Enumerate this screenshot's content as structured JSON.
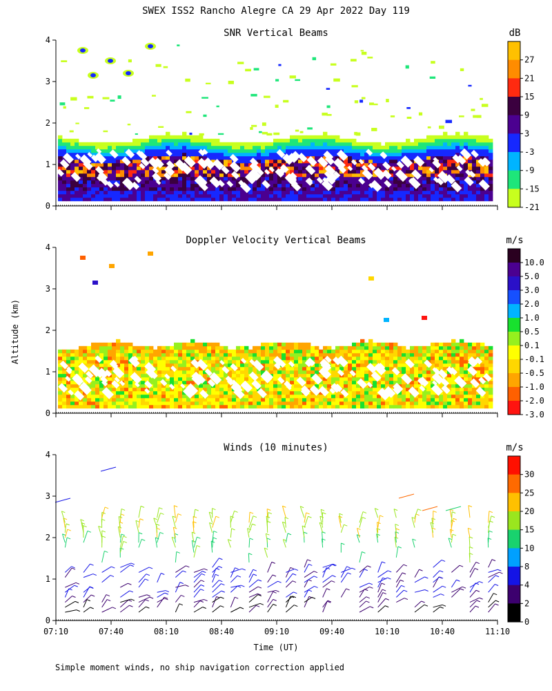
{
  "figure": {
    "title": "SWEX ISS2 Rancho Alegre CA  29 Apr 2022 Day 119",
    "ylabel": "Altitude (km)",
    "xlabel": "Time (UT)",
    "footnote": "Simple moment winds, no ship navigation correction applied"
  },
  "chart_data": [
    {
      "type": "heatmap",
      "title": "SNR Vertical Beams",
      "xlabel": "Time (UT)",
      "ylabel": "Altitude (km)",
      "xlim": [
        "07:10",
        "11:10"
      ],
      "ylim": [
        0,
        4
      ],
      "y_ticks": [
        "0",
        "1",
        "2",
        "3",
        "4"
      ],
      "colorbar": {
        "unit": "dB",
        "ticks": [
          "27",
          "21",
          "15",
          "9",
          "3",
          "-3",
          "-9",
          "-15",
          "-21"
        ],
        "colors": [
          "#ffc000",
          "#ff8c00",
          "#ff2a10",
          "#3b003f",
          "#4b0090",
          "#1628ff",
          "#00b4ff",
          "#1ee67a",
          "#c8ff1e"
        ]
      },
      "description_values": {
        "layer_top_km": 1.7,
        "strong_return_band_km": [
          0.2,
          1.5
        ],
        "scattered_returns_km": [
          1.8,
          4.0
        ]
      }
    },
    {
      "type": "heatmap",
      "title": "Doppler Velocity Vertical Beams",
      "xlabel": "Time (UT)",
      "ylabel": "Altitude (km)",
      "xlim": [
        "07:10",
        "11:10"
      ],
      "ylim": [
        0,
        4
      ],
      "y_ticks": [
        "0",
        "1",
        "2",
        "3",
        "4"
      ],
      "colorbar": {
        "unit": "m/s",
        "ticks": [
          "10.0",
          "5.0",
          "3.0",
          "2.0",
          "1.0",
          "0.5",
          "0.1",
          "-0.1",
          "-0.5",
          "-1.0",
          "-2.0",
          "-3.0"
        ],
        "colors": [
          "#2a0020",
          "#4b0090",
          "#2a10c8",
          "#1650ff",
          "#00b4ff",
          "#18e12e",
          "#96f01e",
          "#ffff00",
          "#ffd700",
          "#ffa500",
          "#ff6000",
          "#ff1410"
        ]
      },
      "description_values": {
        "layer_top_km": 1.7,
        "dominant_velocity_range_ms": [
          -1.0,
          0.1
        ]
      }
    },
    {
      "type": "scatter",
      "title": "Winds (10 minutes)",
      "xlabel": "Time (UT)",
      "ylabel": "Altitude (km)",
      "xlim": [
        "07:10",
        "11:10"
      ],
      "ylim": [
        0,
        4
      ],
      "x_ticks": [
        "07:10",
        "07:40",
        "08:10",
        "08:40",
        "09:10",
        "09:40",
        "10:10",
        "10:40",
        "11:10"
      ],
      "y_ticks": [
        "0",
        "1",
        "2",
        "3",
        "4"
      ],
      "colorbar": {
        "unit": "m/s",
        "ticks": [
          "30",
          "25",
          "20",
          "15",
          "10",
          "8",
          "4",
          "2",
          "0"
        ],
        "colors": [
          "#ff1000",
          "#ff6a00",
          "#ffc000",
          "#9ae61e",
          "#19d26e",
          "#00a0ff",
          "#1414e6",
          "#3c006e",
          "#000000"
        ]
      },
      "profile_times": [
        "07:15",
        "07:25",
        "07:35",
        "07:45",
        "07:55",
        "08:05",
        "08:15",
        "08:25",
        "08:35",
        "08:45",
        "08:55",
        "09:05",
        "09:15",
        "09:25",
        "09:35",
        "09:45",
        "09:55",
        "10:05",
        "10:15",
        "10:25",
        "10:35",
        "10:45",
        "10:55",
        "11:05"
      ]
    }
  ]
}
